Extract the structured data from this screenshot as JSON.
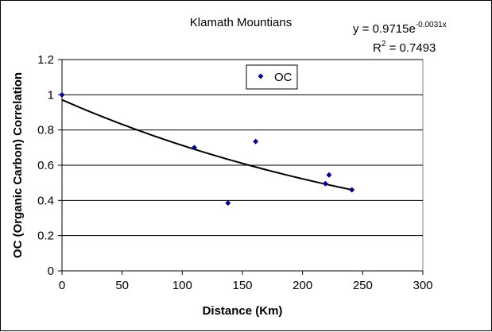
{
  "chart_data": {
    "type": "scatter",
    "title": "Klamath Mountians",
    "xlabel": "Distance (Km)",
    "ylabel": "OC (Organic Carbon) Correlation",
    "xlim": [
      0,
      300
    ],
    "ylim": [
      0,
      1.2
    ],
    "x_ticks": [
      "0",
      "50",
      "100",
      "150",
      "200",
      "250",
      "300"
    ],
    "y_ticks": [
      "0",
      "0.2",
      "0.4",
      "0.6",
      "0.8",
      "1",
      "1.2"
    ],
    "grid": "horizontal",
    "legend": {
      "placement": "top-center",
      "entries": [
        "OC"
      ]
    },
    "series": [
      {
        "name": "OC",
        "color": "#000080",
        "marker": "diamond",
        "x": [
          0,
          110,
          138,
          161,
          219,
          222,
          241
        ],
        "y": [
          1.0,
          0.7,
          0.385,
          0.735,
          0.495,
          0.545,
          0.46
        ]
      }
    ],
    "trendline": {
      "type": "exponential",
      "a": 0.9715,
      "b": -0.0031,
      "x_range": [
        0,
        241
      ],
      "equation_prefix": "y = 0.9715e",
      "equation_exponent": "-0.0031x",
      "r2_prefix": "R",
      "r2_exponent": "2",
      "r2_suffix": " = 0.7493"
    }
  }
}
